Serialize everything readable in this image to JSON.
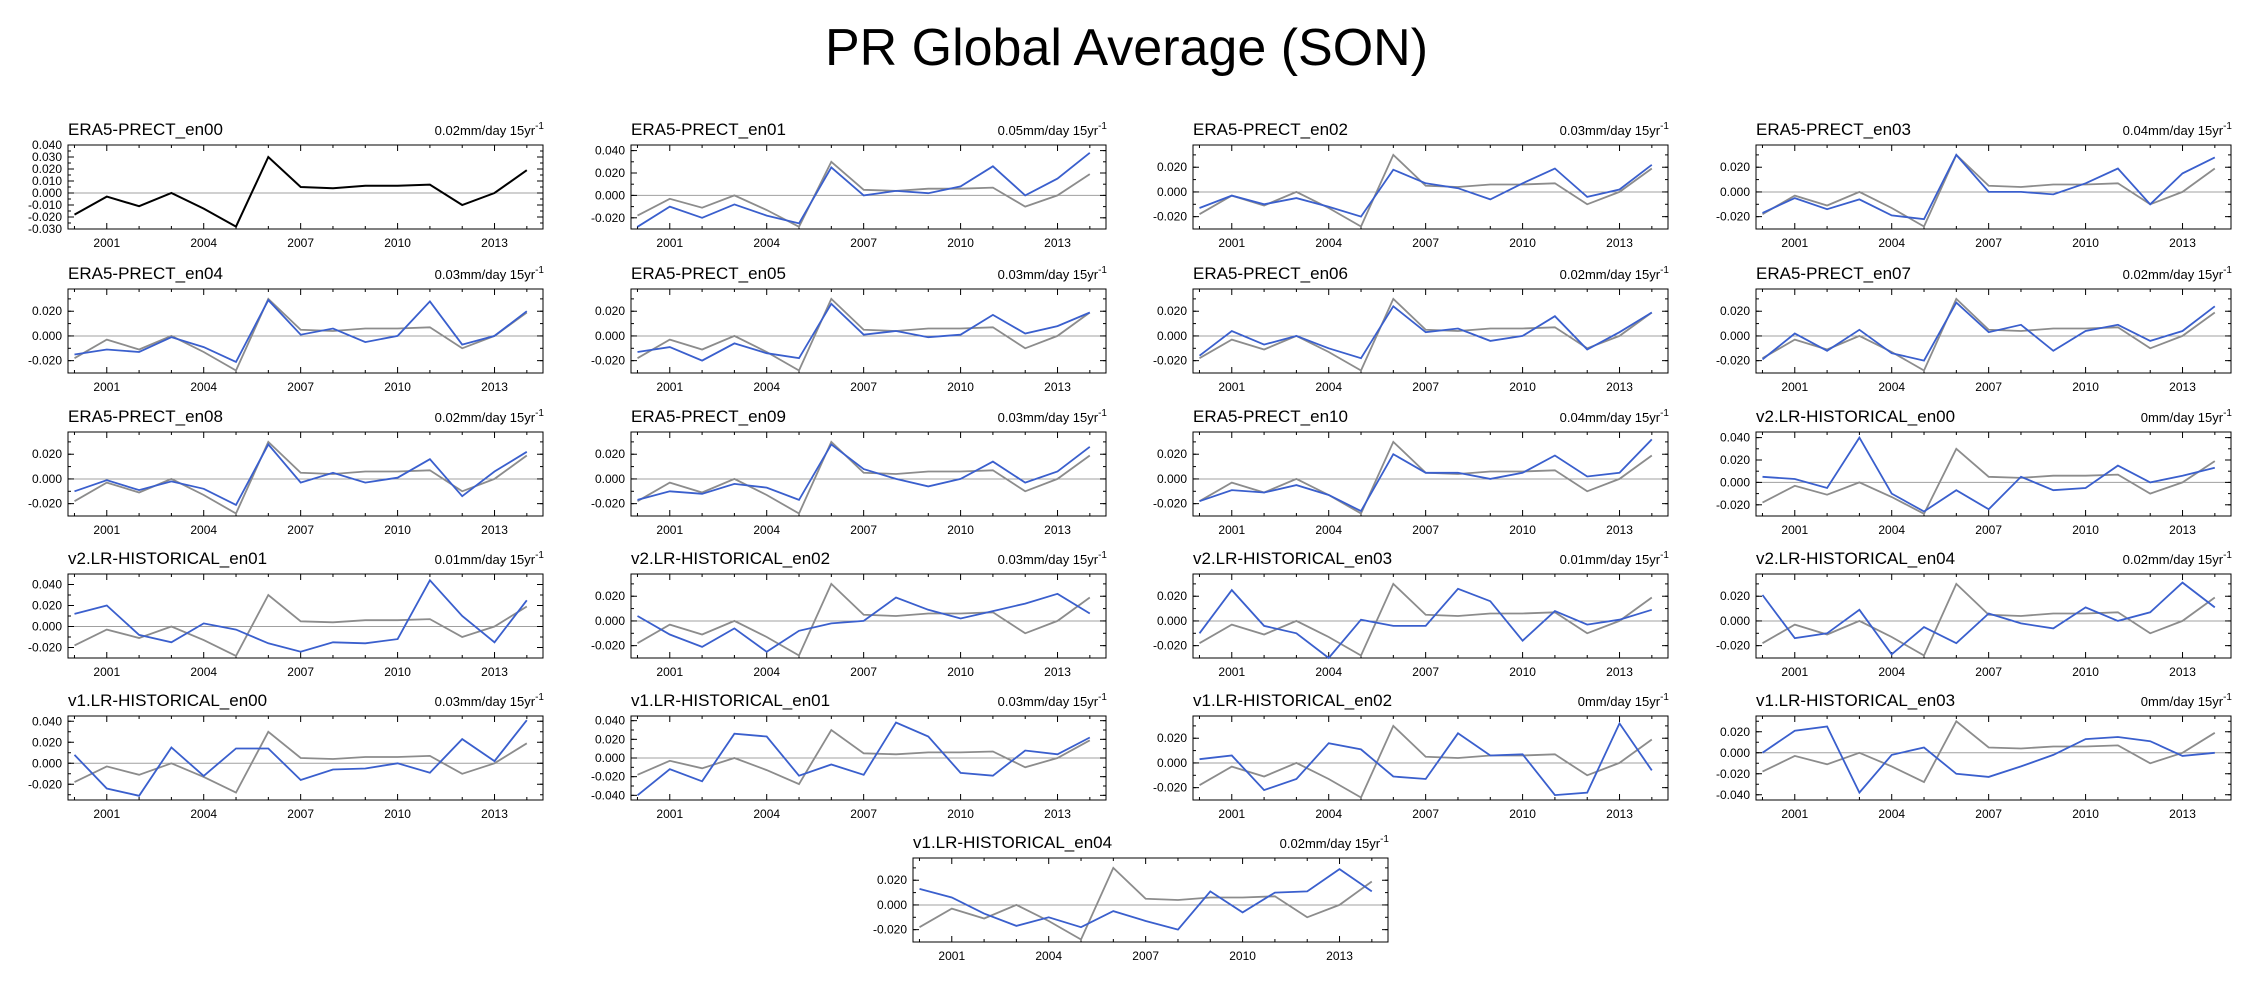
{
  "title": "PR Global Average (SON)",
  "colors": {
    "reference": "#000000",
    "observed": "#8c8c8c",
    "model": "#3a5fcd",
    "zero_line": "#a0a0a0"
  },
  "chart_data": {
    "type": "line",
    "title": "PR Global Average (SON)",
    "x": [
      2000,
      2001,
      2002,
      2003,
      2004,
      2005,
      2006,
      2007,
      2008,
      2009,
      2010,
      2011,
      2012,
      2013,
      2014
    ],
    "x_ticks": [
      2001,
      2004,
      2007,
      2010,
      2013
    ],
    "observed_series": [
      -0.018,
      -0.003,
      -0.011,
      0.0,
      -0.013,
      -0.028,
      0.03,
      0.005,
      0.004,
      0.006,
      0.006,
      0.007,
      -0.01,
      0.0,
      0.019
    ],
    "panels": [
      {
        "title": "ERA5-PRECT_en00",
        "trend": "0.02mm/day 15yr",
        "ylim": [
          -0.03,
          0.04
        ],
        "yticks": [
          "0.040",
          "0.030",
          "0.020",
          "0.010",
          "0.000",
          "-0.010",
          "-0.020",
          "-0.030"
        ],
        "yvals": [
          0.04,
          0.03,
          0.02,
          0.01,
          0.0,
          -0.01,
          -0.02,
          -0.03
        ],
        "reference_only": true,
        "values": []
      },
      {
        "title": "ERA5-PRECT_en01",
        "trend": "0.05mm/day 15yr",
        "ylim": [
          -0.03,
          0.045
        ],
        "yticks": [
          "0.040",
          "0.020",
          "0.000",
          "-0.020"
        ],
        "yvals": [
          0.04,
          0.02,
          0.0,
          -0.02
        ],
        "values": [
          -0.028,
          -0.01,
          -0.02,
          -0.008,
          -0.018,
          -0.025,
          0.025,
          0.0,
          0.004,
          0.002,
          0.008,
          0.026,
          0.0,
          0.015,
          0.038
        ]
      },
      {
        "title": "ERA5-PRECT_en02",
        "trend": "0.03mm/day 15yr",
        "ylim": [
          -0.03,
          0.038
        ],
        "yticks": [
          "0.020",
          "0.000",
          "-0.020"
        ],
        "yvals": [
          0.02,
          0.0,
          -0.02
        ],
        "values": [
          -0.013,
          -0.003,
          -0.01,
          -0.005,
          -0.012,
          -0.02,
          0.018,
          0.007,
          0.003,
          -0.006,
          0.007,
          0.019,
          -0.004,
          0.002,
          0.022
        ]
      },
      {
        "title": "ERA5-PRECT_en03",
        "trend": "0.04mm/day 15yr",
        "ylim": [
          -0.03,
          0.038
        ],
        "yticks": [
          "0.020",
          "0.000",
          "-0.020"
        ],
        "yvals": [
          0.02,
          0.0,
          -0.02
        ],
        "values": [
          -0.017,
          -0.005,
          -0.014,
          -0.006,
          -0.019,
          -0.022,
          0.03,
          0.0,
          0.0,
          -0.002,
          0.007,
          0.019,
          -0.01,
          0.015,
          0.028
        ]
      },
      {
        "title": "ERA5-PRECT_en04",
        "trend": "0.03mm/day 15yr",
        "ylim": [
          -0.03,
          0.038
        ],
        "yticks": [
          "0.020",
          "0.000",
          "-0.020"
        ],
        "yvals": [
          0.02,
          0.0,
          -0.02
        ],
        "values": [
          -0.015,
          -0.011,
          -0.013,
          -0.001,
          -0.009,
          -0.021,
          0.029,
          0.001,
          0.006,
          -0.005,
          0.0,
          0.028,
          -0.007,
          0.0,
          0.02
        ]
      },
      {
        "title": "ERA5-PRECT_en05",
        "trend": "0.03mm/day 15yr",
        "ylim": [
          -0.03,
          0.038
        ],
        "yticks": [
          "0.020",
          "0.000",
          "-0.020"
        ],
        "yvals": [
          0.02,
          0.0,
          -0.02
        ],
        "values": [
          -0.013,
          -0.009,
          -0.02,
          -0.006,
          -0.014,
          -0.018,
          0.026,
          0.001,
          0.004,
          -0.001,
          0.001,
          0.017,
          0.002,
          0.008,
          0.019
        ]
      },
      {
        "title": "ERA5-PRECT_en06",
        "trend": "0.02mm/day 15yr",
        "ylim": [
          -0.03,
          0.038
        ],
        "yticks": [
          "0.020",
          "0.000",
          "-0.020"
        ],
        "yvals": [
          0.02,
          0.0,
          -0.02
        ],
        "values": [
          -0.016,
          0.004,
          -0.007,
          0.0,
          -0.01,
          -0.018,
          0.024,
          0.003,
          0.006,
          -0.004,
          0.0,
          0.016,
          -0.011,
          0.003,
          0.019
        ]
      },
      {
        "title": "ERA5-PRECT_en07",
        "trend": "0.02mm/day 15yr",
        "ylim": [
          -0.03,
          0.038
        ],
        "yticks": [
          "0.020",
          "0.000",
          "-0.020"
        ],
        "yvals": [
          0.02,
          0.0,
          -0.02
        ],
        "values": [
          -0.019,
          0.002,
          -0.012,
          0.005,
          -0.014,
          -0.02,
          0.027,
          0.003,
          0.009,
          -0.012,
          0.004,
          0.009,
          -0.004,
          0.004,
          0.024
        ]
      },
      {
        "title": "ERA5-PRECT_en08",
        "trend": "0.02mm/day 15yr",
        "ylim": [
          -0.03,
          0.038
        ],
        "yticks": [
          "0.020",
          "0.000",
          "-0.020"
        ],
        "yvals": [
          0.02,
          0.0,
          -0.02
        ],
        "values": [
          -0.01,
          -0.001,
          -0.009,
          -0.002,
          -0.008,
          -0.021,
          0.028,
          -0.003,
          0.005,
          -0.003,
          0.001,
          0.016,
          -0.014,
          0.006,
          0.022
        ]
      },
      {
        "title": "ERA5-PRECT_en09",
        "trend": "0.03mm/day 15yr",
        "ylim": [
          -0.03,
          0.038
        ],
        "yticks": [
          "0.020",
          "0.000",
          "-0.020"
        ],
        "yvals": [
          0.02,
          0.0,
          -0.02
        ],
        "values": [
          -0.017,
          -0.01,
          -0.012,
          -0.004,
          -0.007,
          -0.017,
          0.028,
          0.008,
          0.0,
          -0.006,
          0.0,
          0.014,
          -0.003,
          0.006,
          0.026
        ]
      },
      {
        "title": "ERA5-PRECT_en10",
        "trend": "0.04mm/day 15yr",
        "ylim": [
          -0.03,
          0.038
        ],
        "yticks": [
          "0.020",
          "0.000",
          "-0.020"
        ],
        "yvals": [
          0.02,
          0.0,
          -0.02
        ],
        "values": [
          -0.018,
          -0.009,
          -0.011,
          -0.005,
          -0.013,
          -0.026,
          0.02,
          0.005,
          0.005,
          0.0,
          0.005,
          0.019,
          0.002,
          0.005,
          0.032
        ]
      },
      {
        "title": "v2.LR-HISTORICAL_en00",
        "trend": "0mm/day 15yr",
        "ylim": [
          -0.03,
          0.045
        ],
        "yticks": [
          "0.040",
          "0.020",
          "0.000",
          "-0.020"
        ],
        "yvals": [
          0.04,
          0.02,
          0.0,
          -0.02
        ],
        "values": [
          0.005,
          0.003,
          -0.005,
          0.04,
          -0.01,
          -0.026,
          -0.007,
          -0.024,
          0.005,
          -0.007,
          -0.005,
          0.015,
          0.0,
          0.006,
          0.013
        ]
      },
      {
        "title": "v2.LR-HISTORICAL_en01",
        "trend": "0.01mm/day 15yr",
        "ylim": [
          -0.03,
          0.05
        ],
        "yticks": [
          "0.040",
          "0.020",
          "0.000",
          "-0.020"
        ],
        "yvals": [
          0.04,
          0.02,
          0.0,
          -0.02
        ],
        "values": [
          0.012,
          0.02,
          -0.008,
          -0.015,
          0.003,
          -0.003,
          -0.016,
          -0.024,
          -0.015,
          -0.016,
          -0.012,
          0.044,
          0.01,
          -0.015,
          0.025
        ]
      },
      {
        "title": "v2.LR-HISTORICAL_en02",
        "trend": "0.03mm/day 15yr",
        "ylim": [
          -0.03,
          0.038
        ],
        "yticks": [
          "0.020",
          "0.000",
          "-0.020"
        ],
        "yvals": [
          0.02,
          0.0,
          -0.02
        ],
        "values": [
          0.004,
          -0.011,
          -0.021,
          -0.006,
          -0.025,
          -0.008,
          -0.002,
          0.0,
          0.019,
          0.009,
          0.002,
          0.008,
          0.014,
          0.022,
          0.006
        ]
      },
      {
        "title": "v2.LR-HISTORICAL_en03",
        "trend": "0.01mm/day 15yr",
        "ylim": [
          -0.03,
          0.038
        ],
        "yticks": [
          "0.020",
          "0.000",
          "-0.020"
        ],
        "yvals": [
          0.02,
          0.0,
          -0.02
        ],
        "values": [
          -0.01,
          0.025,
          -0.004,
          -0.01,
          -0.03,
          0.001,
          -0.004,
          -0.004,
          0.026,
          0.016,
          -0.016,
          0.008,
          -0.003,
          0.001,
          0.009
        ]
      },
      {
        "title": "v2.LR-HISTORICAL_en04",
        "trend": "0.02mm/day 15yr",
        "ylim": [
          -0.03,
          0.038
        ],
        "yticks": [
          "0.020",
          "0.000",
          "-0.020"
        ],
        "yvals": [
          0.02,
          0.0,
          -0.02
        ],
        "values": [
          0.021,
          -0.014,
          -0.01,
          0.009,
          -0.027,
          -0.005,
          -0.018,
          0.006,
          -0.002,
          -0.006,
          0.011,
          0.0,
          0.007,
          0.031,
          0.011
        ]
      },
      {
        "title": "v1.LR-HISTORICAL_en00",
        "trend": "0.03mm/day 15yr",
        "ylim": [
          -0.035,
          0.045
        ],
        "yticks": [
          "0.040",
          "0.020",
          "0.000",
          "-0.020"
        ],
        "yvals": [
          0.04,
          0.02,
          0.0,
          -0.02
        ],
        "values": [
          0.008,
          -0.024,
          -0.031,
          0.015,
          -0.012,
          0.014,
          0.014,
          -0.016,
          -0.006,
          -0.005,
          0.0,
          -0.009,
          0.023,
          0.002,
          0.041
        ]
      },
      {
        "title": "v1.LR-HISTORICAL_en01",
        "trend": "0.03mm/day 15yr",
        "ylim": [
          -0.045,
          0.045
        ],
        "yticks": [
          "0.040",
          "0.020",
          "0.000",
          "-0.020",
          "-0.040"
        ],
        "yvals": [
          0.04,
          0.02,
          0.0,
          -0.02,
          -0.04
        ],
        "values": [
          -0.04,
          -0.012,
          -0.025,
          0.026,
          0.023,
          -0.019,
          -0.007,
          -0.018,
          0.038,
          0.023,
          -0.016,
          -0.019,
          0.008,
          0.004,
          0.022
        ]
      },
      {
        "title": "v1.LR-HISTORICAL_en02",
        "trend": "0mm/day 15yr",
        "ylim": [
          -0.03,
          0.038
        ],
        "yticks": [
          "0.020",
          "0.000",
          "-0.020"
        ],
        "yvals": [
          0.02,
          0.0,
          -0.02
        ],
        "values": [
          0.003,
          0.006,
          -0.022,
          -0.013,
          0.016,
          0.011,
          -0.011,
          -0.013,
          0.024,
          0.006,
          0.007,
          -0.026,
          -0.024,
          0.032,
          -0.006
        ]
      },
      {
        "title": "v1.LR-HISTORICAL_en03",
        "trend": "0mm/day 15yr",
        "ylim": [
          -0.045,
          0.035
        ],
        "yticks": [
          "0.020",
          "0.000",
          "-0.020",
          "-0.040"
        ],
        "yvals": [
          0.02,
          0.0,
          -0.02,
          -0.04
        ],
        "values": [
          0.0,
          0.021,
          0.025,
          -0.038,
          -0.002,
          0.005,
          -0.02,
          -0.023,
          -0.013,
          -0.002,
          0.013,
          0.015,
          0.011,
          -0.003,
          0.0
        ]
      },
      {
        "title": "v1.LR-HISTORICAL_en04",
        "trend": "0.02mm/day 15yr",
        "ylim": [
          -0.03,
          0.038
        ],
        "yticks": [
          "0.020",
          "0.000",
          "-0.020"
        ],
        "yvals": [
          0.02,
          0.0,
          -0.02
        ],
        "values": [
          0.013,
          0.006,
          -0.007,
          -0.017,
          -0.01,
          -0.018,
          -0.005,
          -0.013,
          -0.02,
          0.011,
          -0.006,
          0.01,
          0.011,
          0.029,
          0.011
        ]
      }
    ]
  }
}
